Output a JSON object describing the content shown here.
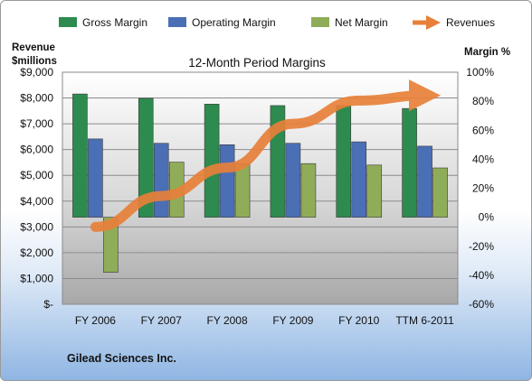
{
  "chart_data": {
    "type": "bar",
    "title": "12-Month Period Margins",
    "ylabel_left": [
      "Revenue",
      "$millions"
    ],
    "ylabel_right": "Margin %",
    "categories": [
      "FY 2006",
      "FY 2007",
      "FY 2008",
      "FY 2009",
      "FY 2010",
      "TTM 6-2011"
    ],
    "y_left_ticks": [
      "$9,000",
      "$8,000",
      "$7,000",
      "$6,000",
      "$5,000",
      "$4,000",
      "$3,000",
      "$2,000",
      "$1,000",
      "$-"
    ],
    "y_left_lim": [
      0,
      9000
    ],
    "y_right_ticks": [
      "100%",
      "80%",
      "60%",
      "40%",
      "20%",
      "0%",
      "-20%",
      "-40%",
      "-60%"
    ],
    "y_right_lim": [
      -60,
      100
    ],
    "grid": true,
    "legend_position": "top",
    "series": [
      {
        "name": "Gross Margin",
        "axis": "right",
        "kind": "bar",
        "color": "#2e8b4f",
        "values": [
          85,
          82,
          78,
          77,
          77,
          75
        ]
      },
      {
        "name": "Operating Margin",
        "axis": "right",
        "kind": "bar",
        "color": "#4a6fb5",
        "values": [
          54,
          51,
          50,
          51,
          52,
          49
        ]
      },
      {
        "name": "Net Margin",
        "axis": "right",
        "kind": "bar",
        "color": "#8fad58",
        "values": [
          -38,
          38,
          37,
          37,
          36,
          34
        ]
      },
      {
        "name": "Revenues",
        "axis": "left",
        "kind": "line",
        "color": "#e8803a",
        "values": [
          3000,
          4200,
          5300,
          7000,
          7900,
          8100
        ]
      }
    ],
    "footer": "Gilead Sciences Inc."
  }
}
